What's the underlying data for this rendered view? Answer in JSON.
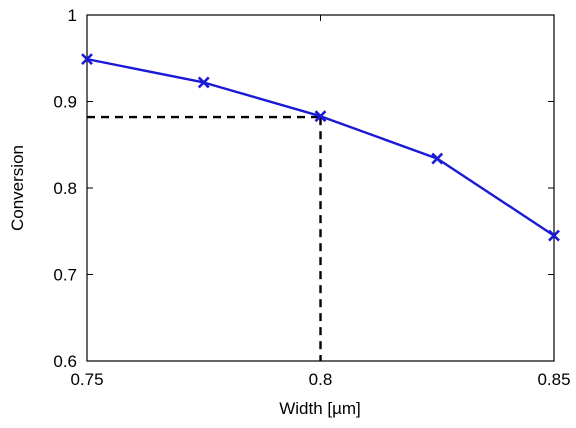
{
  "chart_data": {
    "type": "line",
    "xlabel": "Width [µm]",
    "ylabel": "Conversion",
    "xlim": [
      0.75,
      0.85
    ],
    "ylim": [
      0.6,
      1.0
    ],
    "x_ticks": [
      0.75,
      0.8,
      0.85
    ],
    "x_tick_labels": [
      "0.75",
      "0.8",
      "0.85"
    ],
    "y_ticks": [
      0.6,
      0.7,
      0.8,
      0.9,
      1.0
    ],
    "y_tick_labels": [
      "0.6",
      "0.7",
      "0.8",
      "0.9",
      "1"
    ],
    "grid": false,
    "series": [
      {
        "color": "#1a1ad6",
        "marker": "x",
        "x": [
          0.75,
          0.775,
          0.8,
          0.825,
          0.85
        ],
        "y": [
          0.949,
          0.922,
          0.883,
          0.834,
          0.745
        ]
      }
    ],
    "reference_lines": {
      "color": "#000000",
      "style": "dashed",
      "x": 0.8,
      "y": 0.882
    }
  }
}
